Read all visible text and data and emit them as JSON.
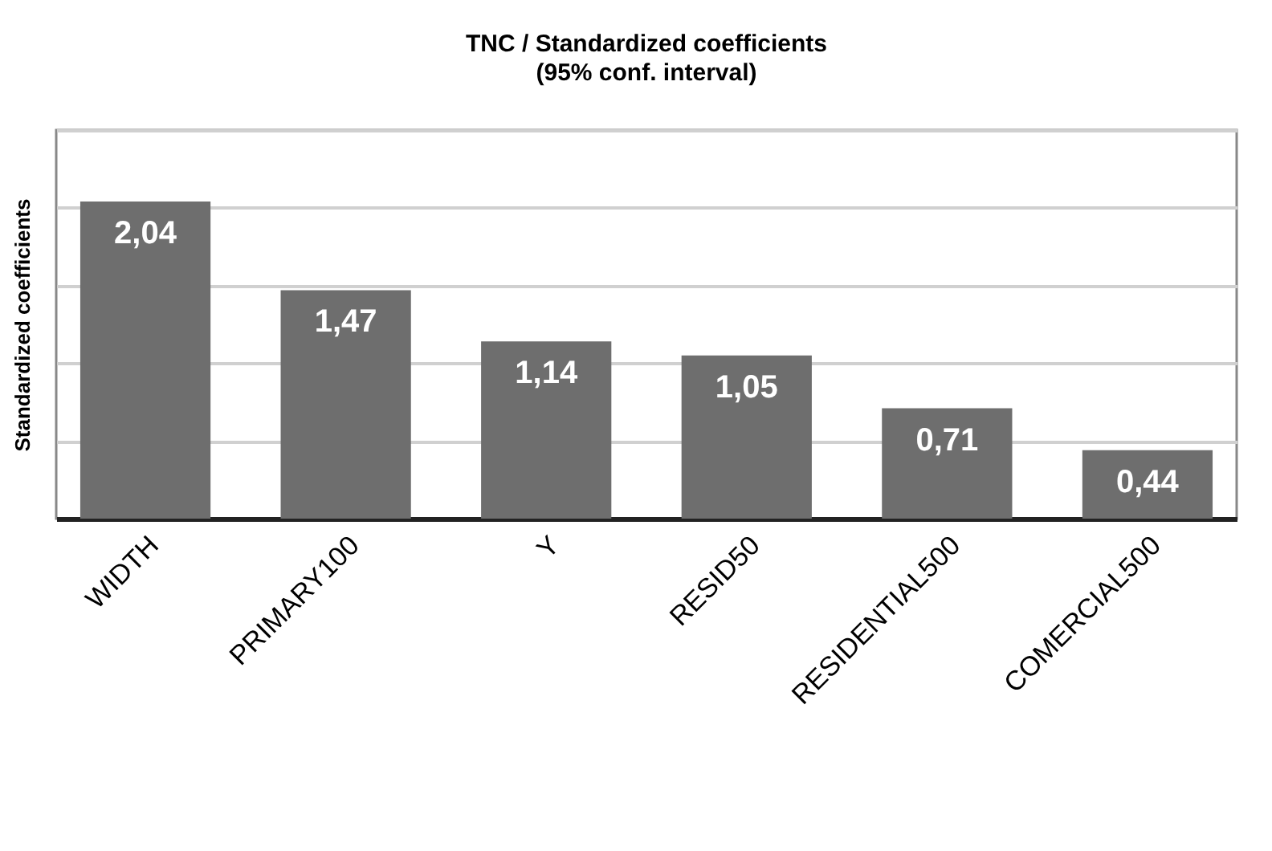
{
  "chart_data": {
    "type": "bar",
    "title": "TNC / Standardized coefficients",
    "subtitle": "(95% conf. interval)",
    "ylabel": "Standardized coefficients",
    "categories": [
      "WIDTH",
      "PRIMARY100",
      "Y",
      "RESID50",
      "RESIDENTIAL500",
      "COMERCIAL500"
    ],
    "values": [
      2.04,
      1.47,
      1.14,
      1.05,
      0.71,
      0.44
    ],
    "value_labels": [
      "2,04",
      "1,47",
      "1,14",
      "1,05",
      "0,71",
      "0,44"
    ],
    "color": "#6e6e6e",
    "ylim": [
      0,
      2.5
    ],
    "yticks": [
      {
        "value": 0,
        "label": null
      },
      {
        "value": 0.5,
        "label": null
      },
      {
        "value": 1,
        "label": null
      },
      {
        "value": 1.5,
        "label": null
      },
      {
        "value": 2,
        "label": null
      },
      {
        "value": 2.5,
        "label": null
      }
    ],
    "tick_labels": "x",
    "grid": "y"
  }
}
